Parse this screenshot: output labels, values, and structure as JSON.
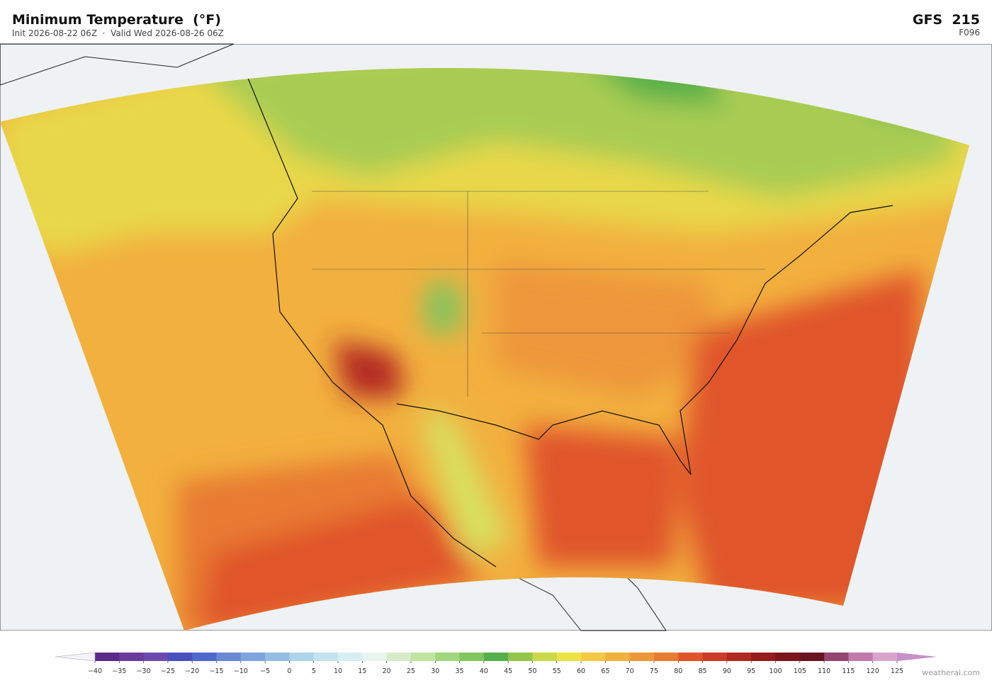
{
  "header": {
    "title": "Minimum Temperature  (°F)",
    "subtitle": "Init 2026-08-22 06Z  ·  Valid Wed 2026-08-26 06Z",
    "model": "GFS  215",
    "forecast_hour": "F096"
  },
  "colorbar": {
    "ticks": [
      {
        "value": -40,
        "label": "−40"
      },
      {
        "value": -35,
        "label": "−35"
      },
      {
        "value": -30,
        "label": "−30"
      },
      {
        "value": -25,
        "label": "−25"
      },
      {
        "value": -20,
        "label": "−20"
      },
      {
        "value": -15,
        "label": "−15"
      },
      {
        "value": -10,
        "label": "−10"
      },
      {
        "value": -5,
        "label": "−5"
      },
      0,
      5,
      10,
      15,
      20,
      25,
      30,
      35,
      40,
      45,
      50,
      55,
      60,
      65,
      70,
      75,
      80,
      85,
      90,
      95,
      100,
      105,
      110,
      115,
      120,
      125
    ],
    "colors": [
      "#5b2a8c",
      "#6a3a9c",
      "#6b4ab0",
      "#4a4fc0",
      "#4f68cc",
      "#6a8ad6",
      "#7fa3dc",
      "#93bde3",
      "#aed3ea",
      "#c4e3f0",
      "#d8eef3",
      "#e8f4ee",
      "#d6ecc8",
      "#bfe3a0",
      "#a2d67e",
      "#80c55e",
      "#55b04c",
      "#95c64c",
      "#cad84a",
      "#ece244",
      "#f5c842",
      "#f2b03e",
      "#ee963a",
      "#e87a32",
      "#e0552a",
      "#cc3a28",
      "#b22822",
      "#961c1e",
      "#7c151c",
      "#6b1320",
      "#944470",
      "#c07aac",
      "#d8a4cc"
    ],
    "under_color": "#f4f4f8",
    "over_color": "#c890c8"
  },
  "credit": "weatherai.com"
}
